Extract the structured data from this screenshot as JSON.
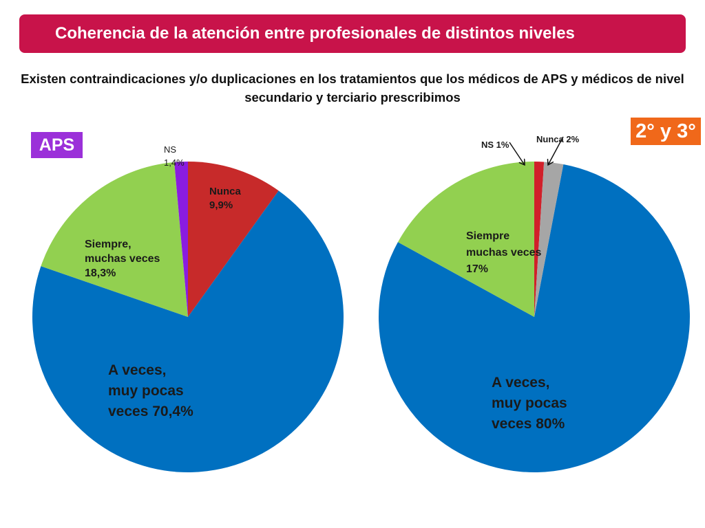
{
  "title": "Coherencia de la atención entre profesionales de distintos niveles",
  "subtitle": "Existen contraindicaciones y/o duplicaciones en los tratamientos que los médicos de APS y médicos de nivel secundario y terciario prescribimos",
  "colors": {
    "title_bg": "#c8134a",
    "a_veces": "#0070c0",
    "siempre": "#92d050",
    "nunca": "#c72a2a",
    "ns_aps": "#8a1ce0",
    "ns_sec": "#d0202a",
    "nunca_sec": "#a6a6a6",
    "badge_aps": "#9b30d9",
    "badge_sec": "#f0681a"
  },
  "chart_data": [
    {
      "type": "pie",
      "badge": "APS",
      "slices": [
        {
          "category": "Nunca",
          "value": 9.9,
          "label_lines": [
            "Nunca",
            "9,9%"
          ],
          "color": "#c72a2a"
        },
        {
          "category": "A veces, muy pocas veces",
          "value": 70.4,
          "label_lines": [
            "A veces,",
            "muy pocas",
            "veces 70,4%"
          ],
          "color": "#0070c0"
        },
        {
          "category": "Siempre, muchas veces",
          "value": 18.3,
          "label_lines": [
            "Siempre,",
            "muchas veces",
            "18,3%"
          ],
          "color": "#92d050"
        },
        {
          "category": "NS",
          "value": 1.4,
          "label_lines": [
            "NS",
            "1,4%"
          ],
          "color": "#8a1ce0"
        }
      ]
    },
    {
      "type": "pie",
      "badge": "2° y 3°",
      "slices": [
        {
          "category": "A veces, muy pocas veces",
          "value": 80,
          "label_lines": [
            "A veces,",
            "muy pocas",
            "veces 80%"
          ],
          "color": "#0070c0"
        },
        {
          "category": "Siempre muchas veces",
          "value": 17,
          "label_lines": [
            "Siempre",
            "muchas veces",
            "17%"
          ],
          "color": "#92d050"
        },
        {
          "category": "NS",
          "value": 1,
          "label_lines": [
            "NS 1%"
          ],
          "color": "#d0202a"
        },
        {
          "category": "Nunca",
          "value": 2,
          "label_lines": [
            "Nunca 2%"
          ],
          "color": "#a6a6a6"
        }
      ]
    }
  ]
}
